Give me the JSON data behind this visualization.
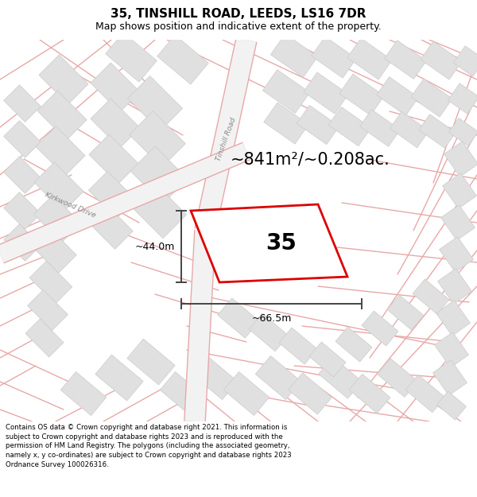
{
  "title_line1": "35, TINSHILL ROAD, LEEDS, LS16 7DR",
  "title_line2": "Map shows position and indicative extent of the property.",
  "area_text": "~841m²/~0.208ac.",
  "property_number": "35",
  "dim_width": "~66.5m",
  "dim_height": "~44.0m",
  "road_label_tinshill": "Tinshill Road",
  "road_label_kirkwood": "Kirkwood Drive",
  "footer_text": "Contains OS data © Crown copyright and database right 2021. This information is subject to Crown copyright and database rights 2023 and is reproduced with the permission of HM Land Registry. The polygons (including the associated geometry, namely x, y co-ordinates) are subject to Crown copyright and database rights 2023 Ordnance Survey 100026316.",
  "map_bg": "#f7f7f7",
  "block_fill": "#e0e0e0",
  "block_stroke": "#cccccc",
  "street_color": "#e8a8a8",
  "street_bg": "#f7f7f7",
  "property_stroke": "#dd0000",
  "property_fill": "#ffffff",
  "dim_color": "#444444",
  "bg_color": "#ffffff",
  "title_fontsize": 11,
  "subtitle_fontsize": 9,
  "area_fontsize": 15,
  "num_fontsize": 20,
  "dim_fontsize": 9,
  "footer_fontsize": 6.2
}
